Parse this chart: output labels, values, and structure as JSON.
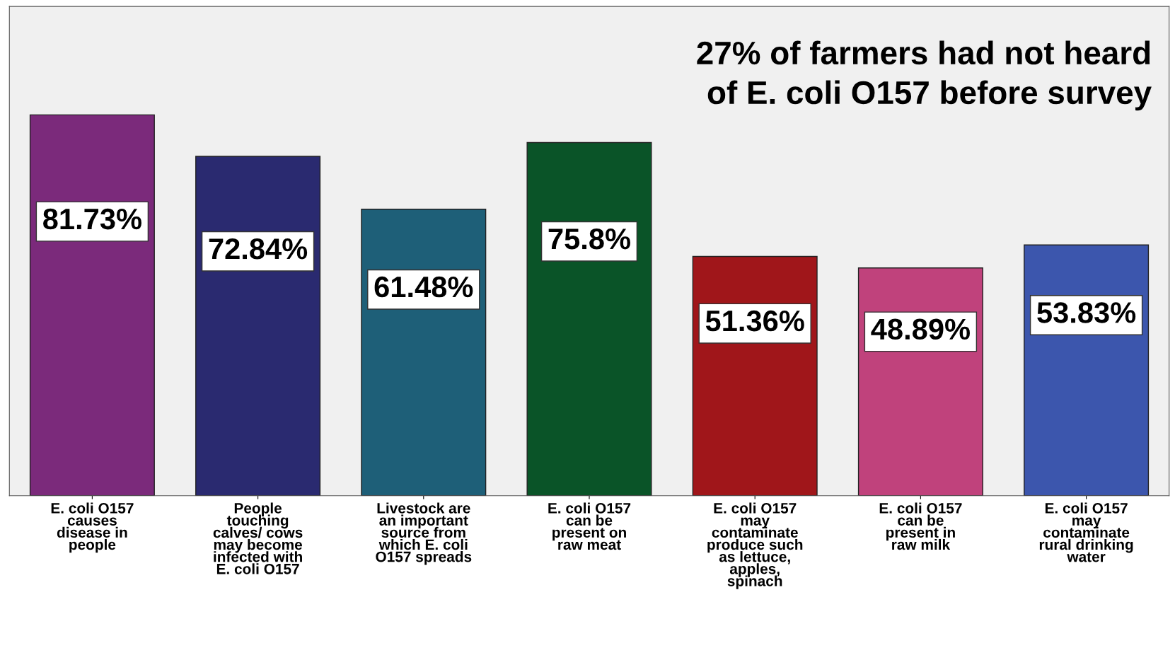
{
  "chart_data": {
    "type": "bar",
    "categories": [
      "E. coli O157\ncauses\ndisease in\npeople",
      "People\ntouching\ncalves/ cows\nmay become\ninfected with\nE. coli O157",
      "Livestock are\nan important\nsource from\nwhich E. coli\nO157 spreads",
      "E. coli O157\ncan be\npresent on\nraw meat",
      "E. coli O157\nmay\ncontaminate\nproduce such\nas lettuce,\napples,\nspinach",
      "E. coli O157\ncan be\npresent in\nraw milk",
      "E. coli O157\nmay\ncontaminate\nrural drinking\nwater"
    ],
    "values": [
      81.73,
      72.84,
      61.48,
      75.8,
      51.36,
      48.89,
      53.83
    ],
    "colors": [
      "#7b2a7b",
      "#2a2a70",
      "#1e5f78",
      "#0a5428",
      "#a0161a",
      "#c0427c",
      "#3c56ad"
    ],
    "value_labels": [
      "81.73%",
      "72.84%",
      "61.48%",
      "75.8%",
      "51.36%",
      "48.89%",
      "53.83%"
    ],
    "ylim": [
      0,
      105
    ],
    "tick_labels": "x",
    "annotations": [
      "27% of farmers had not heard\nof E. coli O157 before survey"
    ]
  }
}
